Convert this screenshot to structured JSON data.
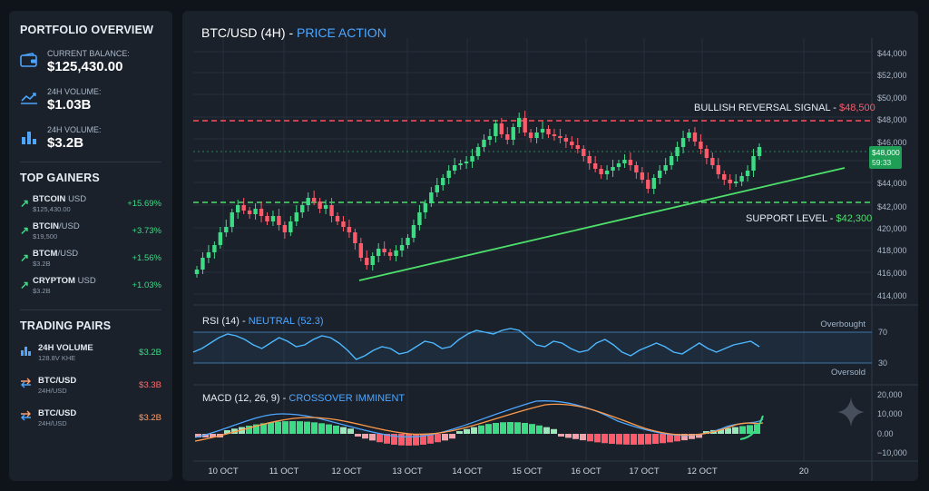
{
  "sidebar": {
    "portfolio_title": "PORTFOLIO OVERVIEW",
    "stats": [
      {
        "icon": "wallet-icon",
        "label": "CURRENT BALANCE:",
        "value": "$125,430.00"
      },
      {
        "icon": "trend-line-icon",
        "label": "24H VOLUME:",
        "value": "$1.03B"
      },
      {
        "icon": "bar-chart-icon",
        "label": "24H VOLUME:",
        "value": "$3.2B"
      }
    ],
    "gainers_title": "TOP GAINERS",
    "gainers": [
      {
        "name": "BTCOIN",
        "pair": "USD",
        "sub": "$125,430.00",
        "change": "+15.69%"
      },
      {
        "name": "BTCIN",
        "pair": "/USD",
        "sub": "$19,500",
        "change": "+3.73%"
      },
      {
        "name": "BTCM",
        "pair": "/USD",
        "sub": "$3.2B",
        "change": "+1.56%"
      },
      {
        "name": "CRYPTOM",
        "pair": "USD",
        "sub": "$3.2B",
        "change": "+1.03%"
      }
    ],
    "pairs_title": "TRADING PAIRS",
    "pairs": [
      {
        "icon": "bar-chart-icon",
        "name": "24H VOLUME",
        "sub": "128.8V KHE",
        "value": "$3.2B",
        "color": "#3ddc84"
      },
      {
        "icon": "swap-arrows-icon",
        "name": "BTC/USD",
        "sub": "24H/USD",
        "value": "$3.3B",
        "color": "#ff6b6b"
      },
      {
        "icon": "swap-arrows-icon",
        "name": "BTC/USD",
        "sub": "24H/USD",
        "value": "$3.2B",
        "color": "#ff9e6b"
      }
    ]
  },
  "main": {
    "title": "BTC/USD (4H)",
    "title_sep": " - ",
    "subtitle": "PRICE ACTION",
    "resistance_label": "BULLISH REVERSAL SIGNAL - ",
    "resistance_value": "$48,500",
    "support_label": "SUPPORT LEVEL - ",
    "support_value": "$42,300",
    "price_tag": "$48,000",
    "price_tag_time": "59:33",
    "price_axis": [
      "$44,000",
      "$52,000",
      "$50,000",
      "$48,000",
      "$46,000",
      "$44,000",
      "$42,000",
      "420,000",
      "418,000",
      "416,000",
      "414,000"
    ],
    "rsi_title": "RSI (14)",
    "rsi_sep": " - ",
    "rsi_status": "NEUTRAL (52.3)",
    "rsi_overbought": "Overbought",
    "rsi_oversold": "Oversold",
    "rsi_axis": [
      "70",
      "30"
    ],
    "macd_title": "MACD (12, 26, 9)",
    "macd_sep": " - ",
    "macd_status": "CROSSOVER IMMINENT",
    "macd_axis": [
      "20,000",
      "10,000",
      "0.00",
      "−10,000"
    ],
    "x_axis": [
      "10 OCT",
      "11 OCT",
      "12 OCT",
      "13 OCT",
      "14 OCT",
      "15 OCT",
      "16 OCT",
      "17 OCT",
      "12 OCT",
      "20"
    ]
  },
  "colors": {
    "up": "#3ddc84",
    "down": "#ff5a6a",
    "accent": "#4da6ff",
    "resistance": "#ff4d5a",
    "support": "#4de06a"
  }
}
